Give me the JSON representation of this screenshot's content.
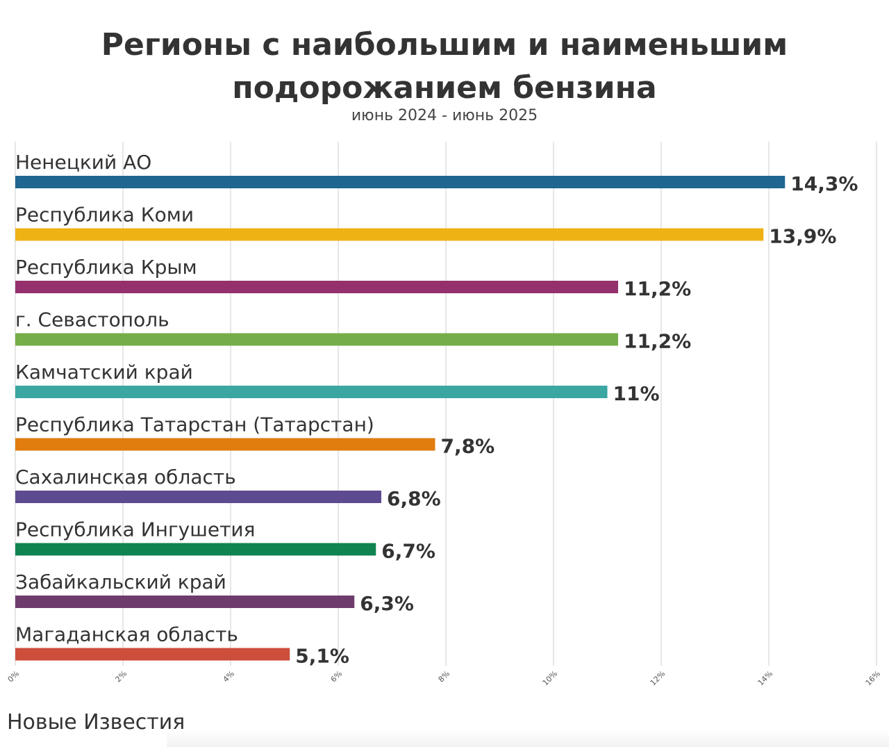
{
  "chart_data": {
    "type": "bar",
    "orientation": "horizontal",
    "title": "Регионы с наибольшим и наименьшим подорожанием бензина",
    "subtitle": "июнь 2024 - июнь 2025",
    "categories": [
      "Ненецкий АО",
      "Республика Коми",
      "Республика Крым",
      "г. Севастополь",
      "Камчатский край",
      "Республика Татарстан (Татарстан)",
      "Сахалинская область",
      "Республика Ингушетия",
      "Забайкальский край",
      "Магаданская область"
    ],
    "values": [
      14.3,
      13.9,
      11.2,
      11.2,
      11.0,
      7.8,
      6.8,
      6.7,
      6.3,
      5.1
    ],
    "value_labels": [
      "14,3%",
      "13,9%",
      "11,2%",
      "11,2%",
      "11%",
      "7,8%",
      "6,8%",
      "6,7%",
      "6,3%",
      "5,1%"
    ],
    "colors": [
      "#1f6690",
      "#eeb215",
      "#94316c",
      "#75ae48",
      "#3ba6a2",
      "#e07d0e",
      "#5e4a91",
      "#0f8451",
      "#6e3d6e",
      "#cc4e3b"
    ],
    "xlim": [
      0,
      16
    ],
    "x_ticks": [
      "0%",
      "2%",
      "4%",
      "6%",
      "8%",
      "10%",
      "12%",
      "14%",
      "16%"
    ],
    "grid": "vertical",
    "legend": "none"
  },
  "source": "Новые Известия"
}
